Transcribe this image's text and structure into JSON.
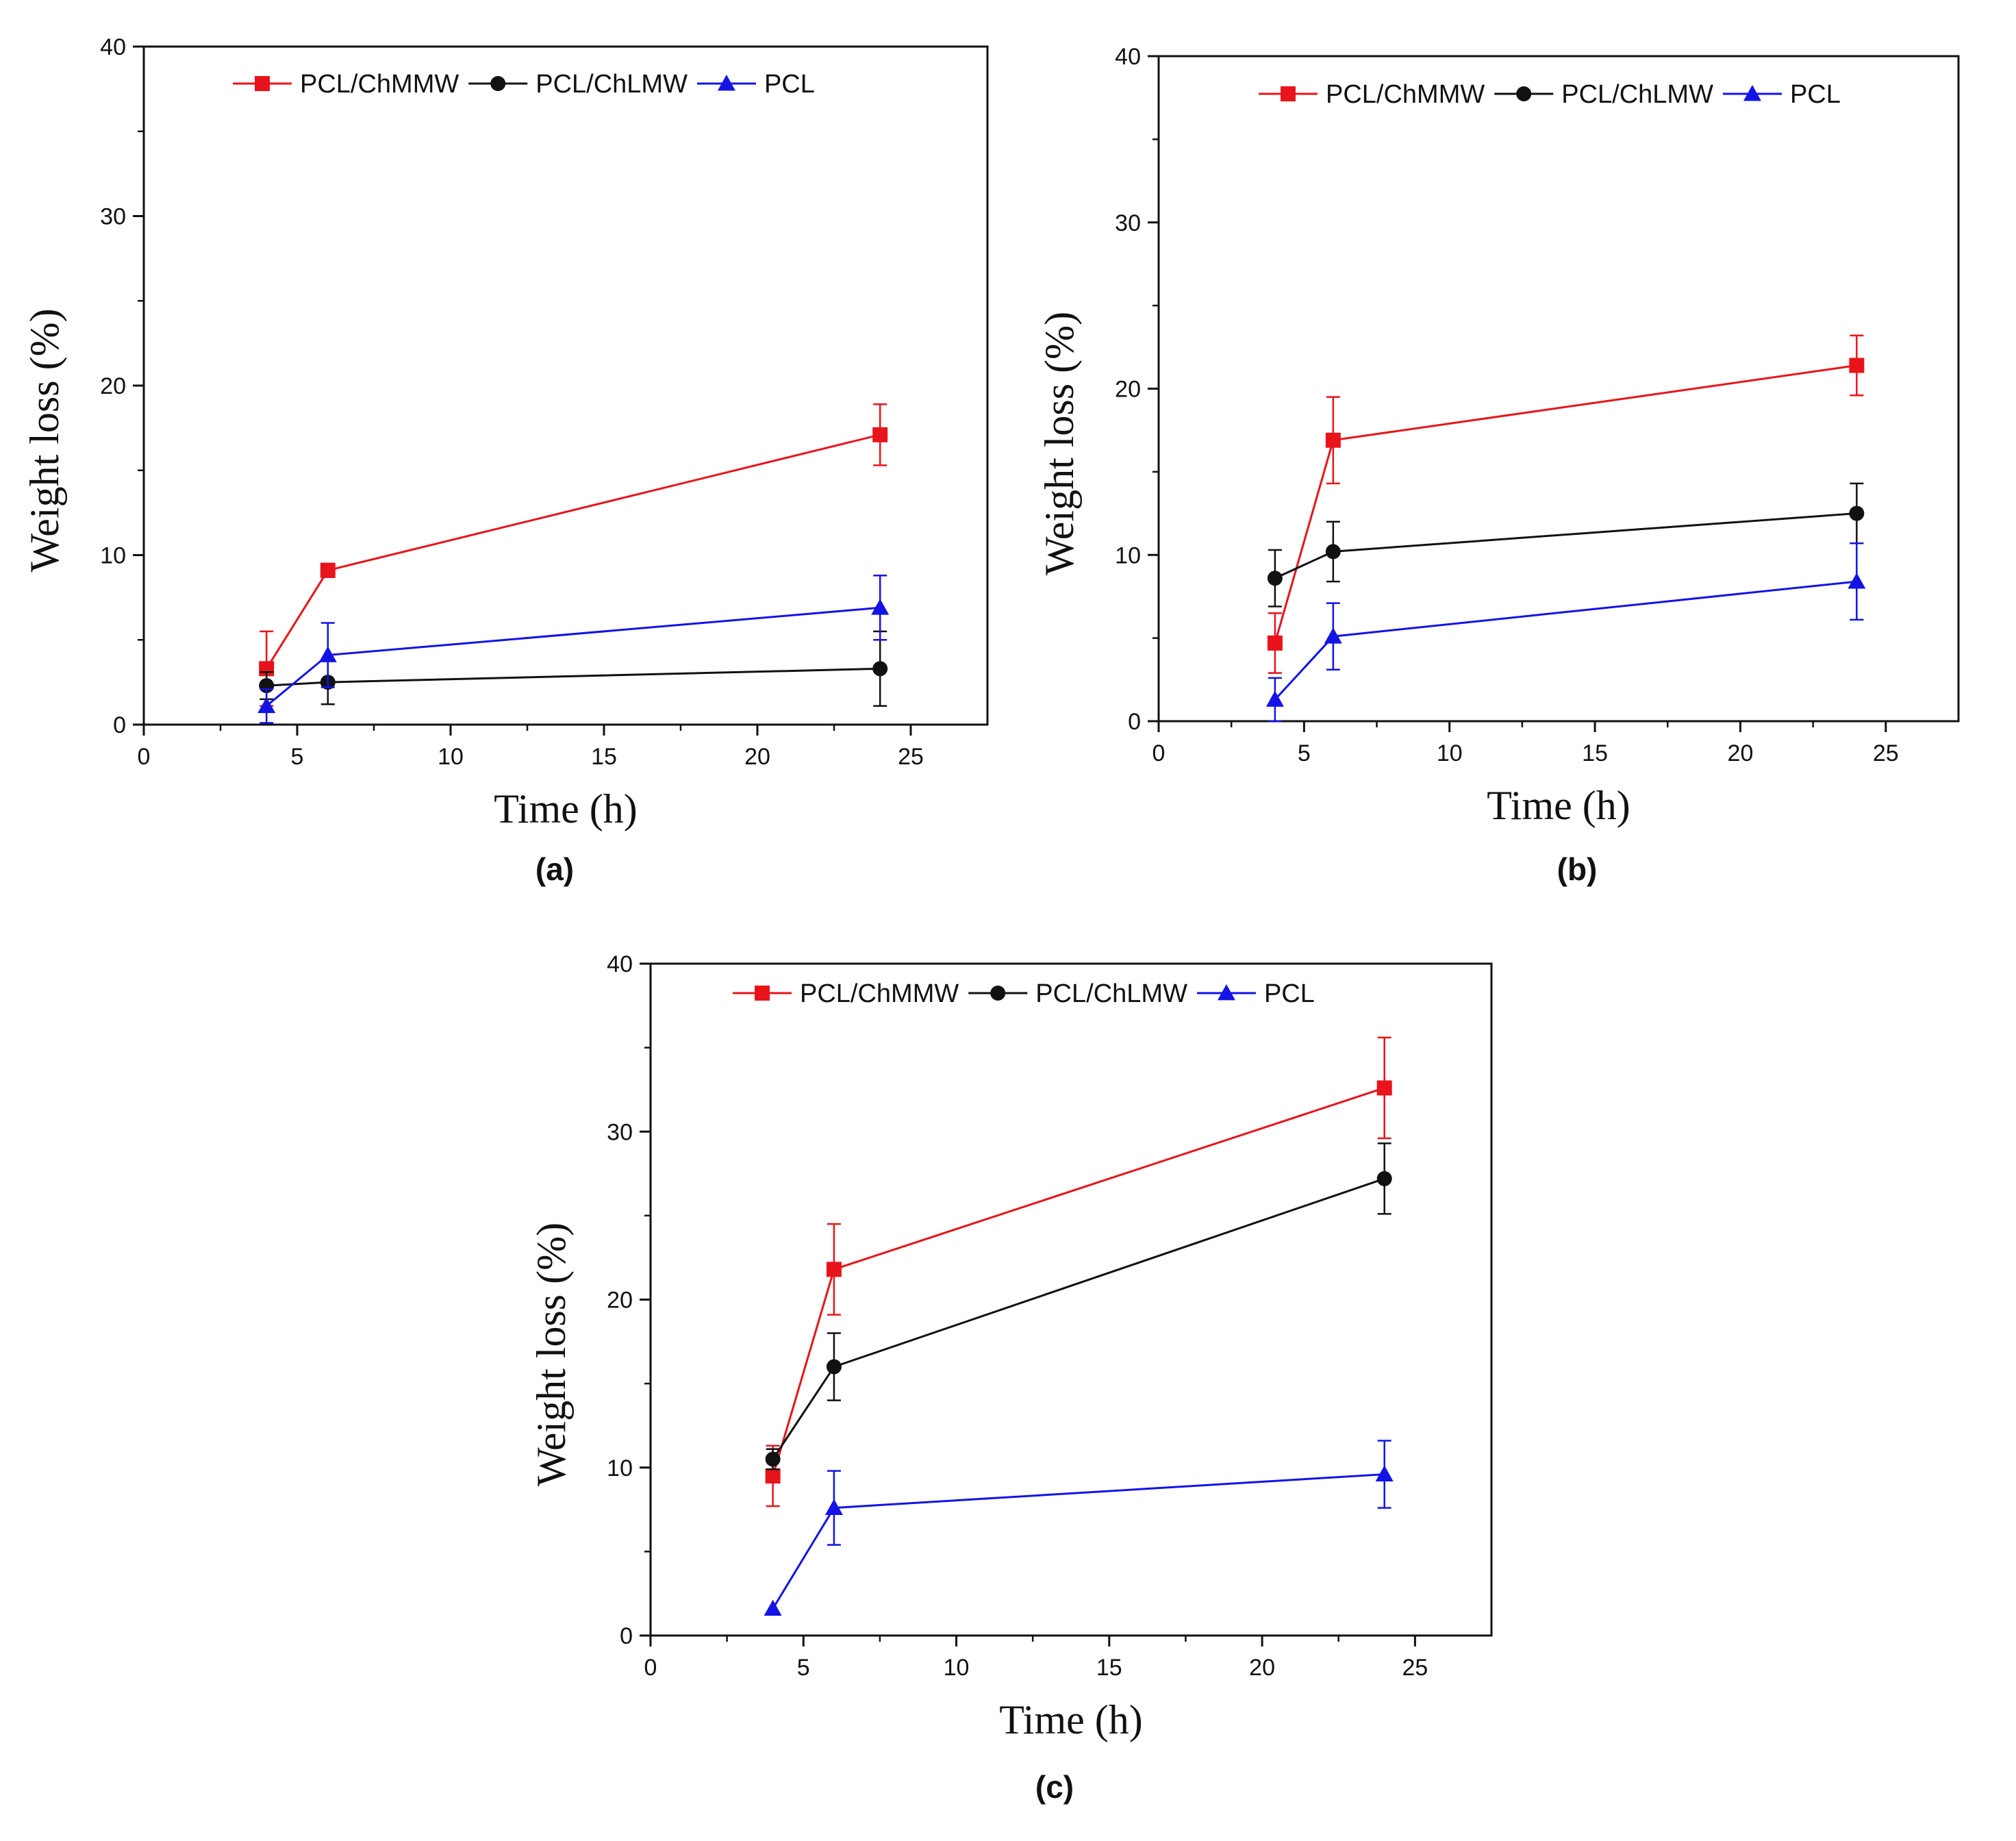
{
  "chart_data": [
    {
      "panel": "(a)",
      "type": "line",
      "xlabel": "Time (h)",
      "ylabel": "Weight loss (%)",
      "xlim": [
        0,
        27.5
      ],
      "ylim": [
        0,
        40
      ],
      "xticks": [
        0,
        5,
        10,
        15,
        20,
        25
      ],
      "yticks": [
        0,
        10,
        20,
        30,
        40
      ],
      "legend_position": "top",
      "series": [
        {
          "name": "PCL/ChMMW",
          "color": "#e8141b",
          "marker": "square",
          "x": [
            4,
            6,
            24
          ],
          "y": [
            3.3,
            9.1,
            17.1
          ],
          "err": [
            2.2,
            0.4,
            1.8
          ]
        },
        {
          "name": "PCL/ChLMW",
          "color": "#111111",
          "marker": "circle",
          "x": [
            4,
            6,
            24
          ],
          "y": [
            2.3,
            2.5,
            3.3
          ],
          "err": [
            0.8,
            1.3,
            2.2
          ]
        },
        {
          "name": "PCL",
          "color": "#1313e6",
          "marker": "triangle",
          "x": [
            4,
            6,
            24
          ],
          "y": [
            1.1,
            4.1,
            6.9
          ],
          "err": [
            1.0,
            1.9,
            1.9
          ]
        }
      ]
    },
    {
      "panel": "(b)",
      "type": "line",
      "xlabel": "Time (h)",
      "ylabel": "Weight loss (%)",
      "xlim": [
        0,
        27.5
      ],
      "ylim": [
        0,
        40
      ],
      "xticks": [
        0,
        5,
        10,
        15,
        20,
        25
      ],
      "yticks": [
        0,
        10,
        20,
        30,
        40
      ],
      "legend_position": "top",
      "series": [
        {
          "name": "PCL/ChMMW",
          "color": "#e8141b",
          "marker": "square",
          "x": [
            4,
            6,
            24
          ],
          "y": [
            4.7,
            16.9,
            21.4
          ],
          "err": [
            1.8,
            2.6,
            1.8
          ]
        },
        {
          "name": "PCL/ChLMW",
          "color": "#111111",
          "marker": "circle",
          "x": [
            4,
            6,
            24
          ],
          "y": [
            8.6,
            10.2,
            12.5
          ],
          "err": [
            1.7,
            1.8,
            1.8
          ]
        },
        {
          "name": "PCL",
          "color": "#1313e6",
          "marker": "triangle",
          "x": [
            4,
            6,
            24
          ],
          "y": [
            1.3,
            5.1,
            8.4
          ],
          "err": [
            1.3,
            2.0,
            2.3
          ]
        }
      ]
    },
    {
      "panel": "(c)",
      "type": "line",
      "xlabel": "Time (h)",
      "ylabel": "Weight loss (%)",
      "xlim": [
        0,
        27.5
      ],
      "ylim": [
        0,
        40
      ],
      "xticks": [
        0,
        5,
        10,
        15,
        20,
        25
      ],
      "yticks": [
        0,
        10,
        20,
        30,
        40
      ],
      "legend_position": "top",
      "series": [
        {
          "name": "PCL/ChMMW",
          "color": "#e8141b",
          "marker": "square",
          "x": [
            4,
            6,
            24
          ],
          "y": [
            9.5,
            21.8,
            32.6
          ],
          "err": [
            1.8,
            2.7,
            3.0
          ]
        },
        {
          "name": "PCL/ChLMW",
          "color": "#111111",
          "marker": "circle",
          "x": [
            4,
            6,
            24
          ],
          "y": [
            10.5,
            16.0,
            27.2
          ],
          "err": [
            0.6,
            2.0,
            2.1
          ]
        },
        {
          "name": "PCL",
          "color": "#1313e6",
          "marker": "triangle",
          "x": [
            4,
            6,
            24
          ],
          "y": [
            1.6,
            7.6,
            9.6
          ],
          "err": [
            0.0,
            2.2,
            2.0
          ]
        }
      ]
    }
  ]
}
